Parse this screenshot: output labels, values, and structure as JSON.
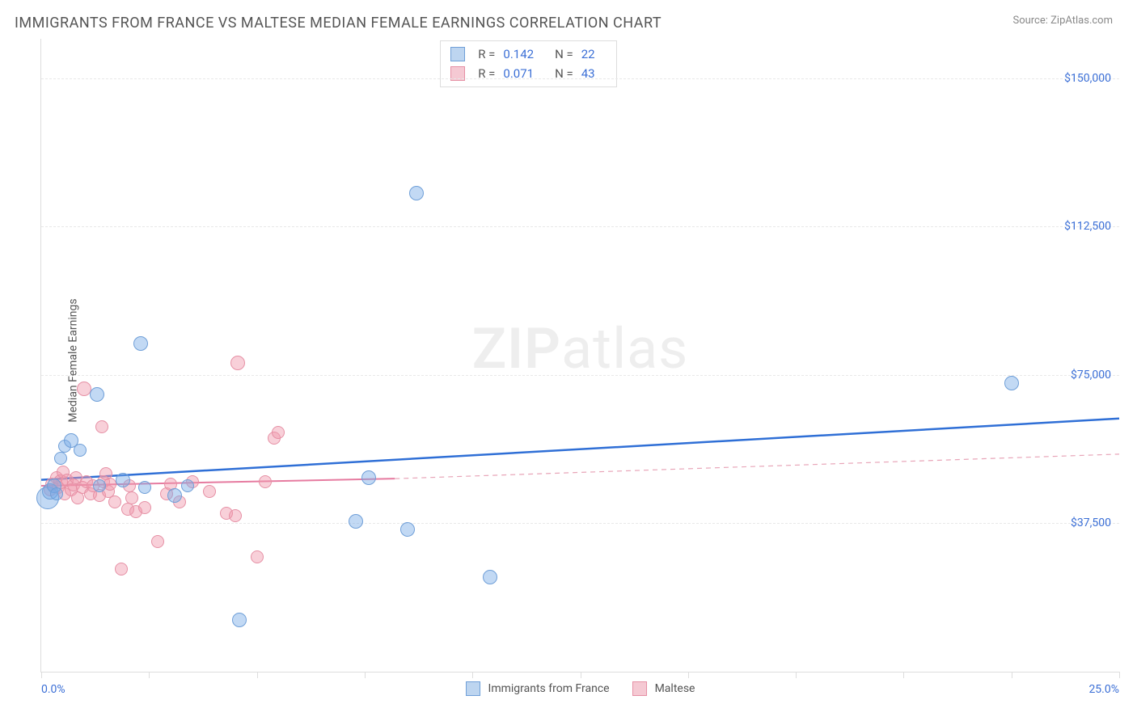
{
  "title": "IMMIGRANTS FROM FRANCE VS MALTESE MEDIAN FEMALE EARNINGS CORRELATION CHART",
  "source": "Source: ZipAtlas.com",
  "watermark": {
    "bold": "ZIP",
    "rest": "atlas"
  },
  "y_axis": {
    "title": "Median Female Earnings",
    "min": 0,
    "max": 160000,
    "gridlines": [
      37500,
      75000,
      112500,
      150000
    ],
    "tick_labels": [
      "$37,500",
      "$75,000",
      "$112,500",
      "$150,000"
    ],
    "label_color": "#3b6fd6"
  },
  "x_axis": {
    "min": 0,
    "max": 25,
    "ticks": [
      0,
      2.5,
      5,
      7.5,
      10,
      12.5,
      15,
      17.5,
      20,
      22.5,
      25
    ],
    "left_label": "0.0%",
    "right_label": "25.0%",
    "label_color": "#3b6fd6"
  },
  "series": [
    {
      "name": "Immigrants from France",
      "legend_label": "Immigrants from France",
      "color_fill": "rgba(120,170,230,0.45)",
      "color_stroke": "#6f9fd8",
      "swatch_fill": "#bdd5f0",
      "swatch_border": "#6f9fd8",
      "R": "0.142",
      "N": "22",
      "trend": {
        "y_at_xmin": 48500,
        "y_at_xmax": 64000,
        "color": "#2f6fd6",
        "width": 2.5,
        "dash": "none"
      },
      "points": [
        {
          "x": 0.15,
          "y": 44000,
          "r": 14
        },
        {
          "x": 0.2,
          "y": 45500,
          "r": 10
        },
        {
          "x": 0.3,
          "y": 47000,
          "r": 9
        },
        {
          "x": 0.35,
          "y": 45000,
          "r": 8
        },
        {
          "x": 0.45,
          "y": 54000,
          "r": 8
        },
        {
          "x": 0.55,
          "y": 57000,
          "r": 8
        },
        {
          "x": 0.7,
          "y": 58500,
          "r": 9
        },
        {
          "x": 0.9,
          "y": 56000,
          "r": 8
        },
        {
          "x": 1.3,
          "y": 70000,
          "r": 9
        },
        {
          "x": 1.35,
          "y": 47000,
          "r": 8
        },
        {
          "x": 1.9,
          "y": 48500,
          "r": 9
        },
        {
          "x": 2.3,
          "y": 83000,
          "r": 9
        },
        {
          "x": 2.4,
          "y": 46500,
          "r": 8
        },
        {
          "x": 3.1,
          "y": 44500,
          "r": 9
        },
        {
          "x": 3.4,
          "y": 47000,
          "r": 8
        },
        {
          "x": 4.6,
          "y": 13000,
          "r": 9
        },
        {
          "x": 7.3,
          "y": 38000,
          "r": 9
        },
        {
          "x": 7.6,
          "y": 49000,
          "r": 9
        },
        {
          "x": 8.5,
          "y": 36000,
          "r": 9
        },
        {
          "x": 8.7,
          "y": 121000,
          "r": 9
        },
        {
          "x": 10.4,
          "y": 24000,
          "r": 9
        },
        {
          "x": 22.5,
          "y": 73000,
          "r": 9
        }
      ]
    },
    {
      "name": "Maltese",
      "legend_label": "Maltese",
      "color_fill": "rgba(240,150,170,0.45)",
      "color_stroke": "#e690a5",
      "swatch_fill": "#f5c9d3",
      "swatch_border": "#e690a5",
      "R": "0.071",
      "N": "43",
      "trend_solid": {
        "y_at_xmin": 47000,
        "x_end": 8.2,
        "y_at_xend": 48800,
        "color": "#e67ba0",
        "width": 2,
        "dash": "none"
      },
      "trend_dash": {
        "x_start": 8.2,
        "y_start": 48800,
        "y_at_xmax": 55000,
        "color": "#e8a5b8",
        "width": 1.2,
        "dash": "6,5"
      },
      "points": [
        {
          "x": 0.2,
          "y": 46000,
          "r": 8
        },
        {
          "x": 0.25,
          "y": 47500,
          "r": 8
        },
        {
          "x": 0.35,
          "y": 49000,
          "r": 8
        },
        {
          "x": 0.4,
          "y": 46500,
          "r": 8
        },
        {
          "x": 0.45,
          "y": 48000,
          "r": 9
        },
        {
          "x": 0.5,
          "y": 50500,
          "r": 8
        },
        {
          "x": 0.55,
          "y": 45000,
          "r": 8
        },
        {
          "x": 0.6,
          "y": 48500,
          "r": 8
        },
        {
          "x": 0.7,
          "y": 46000,
          "r": 8
        },
        {
          "x": 0.75,
          "y": 47200,
          "r": 8
        },
        {
          "x": 0.8,
          "y": 49000,
          "r": 8
        },
        {
          "x": 0.85,
          "y": 44000,
          "r": 8
        },
        {
          "x": 0.95,
          "y": 46500,
          "r": 8
        },
        {
          "x": 1.0,
          "y": 71500,
          "r": 9
        },
        {
          "x": 1.05,
          "y": 48000,
          "r": 8
        },
        {
          "x": 1.15,
          "y": 45000,
          "r": 8
        },
        {
          "x": 1.2,
          "y": 47000,
          "r": 8
        },
        {
          "x": 1.35,
          "y": 44500,
          "r": 8
        },
        {
          "x": 1.4,
          "y": 62000,
          "r": 8
        },
        {
          "x": 1.45,
          "y": 48000,
          "r": 8
        },
        {
          "x": 1.5,
          "y": 50000,
          "r": 8
        },
        {
          "x": 1.55,
          "y": 45500,
          "r": 8
        },
        {
          "x": 1.6,
          "y": 47500,
          "r": 8
        },
        {
          "x": 1.7,
          "y": 43000,
          "r": 8
        },
        {
          "x": 1.85,
          "y": 26000,
          "r": 8
        },
        {
          "x": 2.0,
          "y": 41000,
          "r": 8
        },
        {
          "x": 2.05,
          "y": 47000,
          "r": 8
        },
        {
          "x": 2.1,
          "y": 44000,
          "r": 8
        },
        {
          "x": 2.2,
          "y": 40500,
          "r": 8
        },
        {
          "x": 2.4,
          "y": 41500,
          "r": 8
        },
        {
          "x": 2.7,
          "y": 33000,
          "r": 8
        },
        {
          "x": 2.9,
          "y": 45000,
          "r": 8
        },
        {
          "x": 3.0,
          "y": 47500,
          "r": 8
        },
        {
          "x": 3.2,
          "y": 43000,
          "r": 8
        },
        {
          "x": 3.5,
          "y": 48000,
          "r": 8
        },
        {
          "x": 3.9,
          "y": 45500,
          "r": 8
        },
        {
          "x": 4.3,
          "y": 40000,
          "r": 8
        },
        {
          "x": 4.5,
          "y": 39500,
          "r": 8
        },
        {
          "x": 4.55,
          "y": 78000,
          "r": 9
        },
        {
          "x": 5.0,
          "y": 29000,
          "r": 8
        },
        {
          "x": 5.2,
          "y": 48000,
          "r": 8
        },
        {
          "x": 5.4,
          "y": 59000,
          "r": 8
        },
        {
          "x": 5.5,
          "y": 60500,
          "r": 8
        }
      ]
    }
  ],
  "colors": {
    "title": "#555555",
    "grid": "#e8e8e8",
    "axis": "#dddddd",
    "background": "#ffffff"
  }
}
